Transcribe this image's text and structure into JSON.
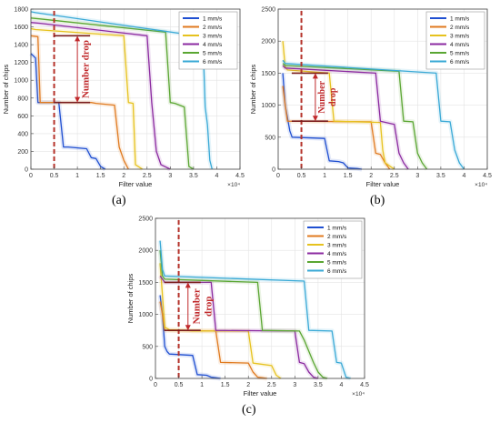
{
  "chart_data": [
    {
      "type": "line",
      "panel_label": "(a)",
      "xlabel": "Filter value",
      "ylabel": "Number of chips",
      "x_multiplier": "×10⁴",
      "xlim": [
        0,
        45000
      ],
      "ylim": [
        0,
        1800
      ],
      "xticks": [
        0,
        5000,
        10000,
        15000,
        20000,
        25000,
        30000,
        35000,
        40000,
        45000
      ],
      "xtick_labels": [
        "0",
        "0.5",
        "1",
        "1.5",
        "2",
        "2.5",
        "3",
        "3.5",
        "4",
        "4.5"
      ],
      "yticks": [
        0,
        200,
        400,
        600,
        800,
        1000,
        1200,
        1400,
        1600,
        1800
      ],
      "ytick_labels": [
        "0",
        "200",
        "400",
        "600",
        "800",
        "1000",
        "1200",
        "1400",
        "1600",
        "1800"
      ],
      "grid": true,
      "legend": "top-right",
      "threshold_x": 5000,
      "annotation": {
        "text": "Number drop",
        "x": 10000,
        "y_top": 1500,
        "y_bottom": 750
      },
      "series": [
        {
          "name": "1 mm/s",
          "color": "#1f4fd1",
          "x": [
            0,
            1000,
            1500,
            2500,
            6000,
            7000,
            8000,
            12000,
            13000,
            14000,
            15000,
            16000
          ],
          "y": [
            1300,
            1250,
            750,
            750,
            750,
            250,
            250,
            230,
            130,
            120,
            30,
            0
          ]
        },
        {
          "name": "2 mm/s",
          "color": "#e07a1f",
          "x": [
            0,
            1500,
            2000,
            13000,
            14000,
            18000,
            19000,
            20000,
            21000
          ],
          "y": [
            1500,
            1490,
            750,
            750,
            740,
            720,
            250,
            100,
            0
          ]
        },
        {
          "name": "3 mm/s",
          "color": "#e6c21e",
          "x": [
            0,
            1000,
            20000,
            21000,
            22000,
            22500,
            24000
          ],
          "y": [
            1580,
            1570,
            1500,
            750,
            740,
            50,
            0
          ]
        },
        {
          "name": "4 mm/s",
          "color": "#8b2aa0",
          "x": [
            0,
            2000,
            25000,
            26000,
            27000,
            28000,
            30000
          ],
          "y": [
            1650,
            1640,
            1500,
            750,
            200,
            50,
            0
          ]
        },
        {
          "name": "5 mm/s",
          "color": "#5aa632",
          "x": [
            0,
            2000,
            29000,
            30000,
            31000,
            33000,
            34000,
            35000
          ],
          "y": [
            1700,
            1690,
            1540,
            750,
            740,
            700,
            30,
            0
          ]
        },
        {
          "name": "6 mm/s",
          "color": "#39a9d6",
          "x": [
            0,
            1000,
            37000,
            37500,
            38000,
            38500,
            39000
          ],
          "y": [
            1770,
            1760,
            1490,
            700,
            500,
            100,
            0
          ]
        }
      ]
    },
    {
      "type": "line",
      "panel_label": "(b)",
      "xlabel": "Filter value",
      "ylabel": "Number of chips",
      "x_multiplier": "×10⁴",
      "xlim": [
        0,
        45000
      ],
      "ylim": [
        0,
        2500
      ],
      "xticks": [
        0,
        5000,
        10000,
        15000,
        20000,
        25000,
        30000,
        35000,
        40000,
        45000
      ],
      "xtick_labels": [
        "0",
        "0.5",
        "1",
        "1.5",
        "2",
        "2.5",
        "3",
        "3.5",
        "4",
        "4.5"
      ],
      "yticks": [
        0,
        500,
        1000,
        1500,
        2000,
        2500
      ],
      "ytick_labels": [
        "0",
        "500",
        "1000",
        "1500",
        "2000",
        "2500"
      ],
      "grid": true,
      "legend": "top-right",
      "threshold_x": 5000,
      "annotation": {
        "text": "Number drop",
        "x": 8000,
        "y_top": 1500,
        "y_bottom": 750
      },
      "series": [
        {
          "name": "1 mm/s",
          "color": "#1f4fd1",
          "x": [
            1000,
            1500,
            2500,
            3000,
            10000,
            11000,
            13000,
            14000,
            15000,
            17000,
            18000
          ],
          "y": [
            1500,
            1000,
            600,
            500,
            480,
            130,
            120,
            100,
            20,
            10,
            0
          ]
        },
        {
          "name": "2 mm/s",
          "color": "#e07a1f",
          "x": [
            1000,
            1500,
            2000,
            20000,
            21000,
            22000,
            23000,
            24000
          ],
          "y": [
            1300,
            1000,
            750,
            740,
            250,
            230,
            100,
            0
          ]
        },
        {
          "name": "3 mm/s",
          "color": "#e6c21e",
          "x": [
            1000,
            1500,
            2000,
            11000,
            12000,
            22000,
            22500,
            23000,
            25000
          ],
          "y": [
            2000,
            1600,
            1550,
            1500,
            750,
            730,
            300,
            100,
            0
          ]
        },
        {
          "name": "4 mm/s",
          "color": "#8b2aa0",
          "x": [
            1000,
            1500,
            21000,
            22000,
            25000,
            26000,
            27000,
            28000
          ],
          "y": [
            1620,
            1580,
            1500,
            750,
            700,
            250,
            100,
            0
          ]
        },
        {
          "name": "5 mm/s",
          "color": "#5aa632",
          "x": [
            1000,
            1500,
            26000,
            27000,
            29000,
            30000,
            31000,
            32000
          ],
          "y": [
            1650,
            1620,
            1530,
            750,
            740,
            250,
            100,
            0
          ]
        },
        {
          "name": "6 mm/s",
          "color": "#39a9d6",
          "x": [
            1000,
            1500,
            34000,
            35000,
            37000,
            38000,
            39000,
            40000
          ],
          "y": [
            1700,
            1650,
            1500,
            750,
            740,
            300,
            100,
            0
          ]
        }
      ]
    },
    {
      "type": "line",
      "panel_label": "(c)",
      "xlabel": "Filter value",
      "ylabel": "Number of chips",
      "x_multiplier": "×10⁴",
      "xlim": [
        0,
        45000
      ],
      "ylim": [
        0,
        2500
      ],
      "xticks": [
        0,
        5000,
        10000,
        15000,
        20000,
        25000,
        30000,
        35000,
        40000,
        45000
      ],
      "xtick_labels": [
        "0",
        "0.5",
        "1",
        "1.5",
        "2",
        "2.5",
        "3",
        "3.5",
        "4",
        "4.5"
      ],
      "yticks": [
        0,
        500,
        1000,
        1500,
        2000,
        2500
      ],
      "ytick_labels": [
        "0",
        "500",
        "1000",
        "1500",
        "2000",
        "2500"
      ],
      "grid": true,
      "legend": "top-right",
      "threshold_x": 5000,
      "annotation": {
        "text": "Number drop",
        "x": 7000,
        "y_top": 1500,
        "y_bottom": 750
      },
      "series": [
        {
          "name": "1 mm/s",
          "color": "#1f4fd1",
          "x": [
            1000,
            1500,
            2000,
            2500,
            3000,
            8000,
            9000,
            11000,
            12000,
            13000,
            14000
          ],
          "y": [
            1300,
            1000,
            500,
            420,
            380,
            360,
            60,
            50,
            20,
            10,
            0
          ]
        },
        {
          "name": "2 mm/s",
          "color": "#e07a1f",
          "x": [
            1000,
            1500,
            2000,
            13000,
            14000,
            20000,
            21000,
            22000,
            23000,
            24000
          ],
          "y": [
            1200,
            1000,
            750,
            740,
            250,
            240,
            100,
            20,
            10,
            0
          ]
        },
        {
          "name": "3 mm/s",
          "color": "#e6c21e",
          "x": [
            1000,
            1500,
            2000,
            2500,
            3000,
            7000,
            8000,
            20000,
            21000,
            22000,
            25000,
            26000,
            27000
          ],
          "y": [
            1800,
            1300,
            800,
            780,
            760,
            750,
            740,
            740,
            240,
            230,
            200,
            50,
            0
          ]
        },
        {
          "name": "4 mm/s",
          "color": "#8b2aa0",
          "x": [
            1000,
            1500,
            2000,
            12000,
            13000,
            30000,
            31000,
            32000,
            33000,
            34000,
            35000
          ],
          "y": [
            1600,
            1550,
            1500,
            1500,
            750,
            740,
            250,
            230,
            100,
            20,
            0
          ]
        },
        {
          "name": "5 mm/s",
          "color": "#5aa632",
          "x": [
            1000,
            1500,
            2000,
            22000,
            23000,
            31000,
            32000,
            34000,
            35000,
            36000,
            37000
          ],
          "y": [
            2000,
            1600,
            1550,
            1500,
            750,
            740,
            600,
            250,
            100,
            20,
            0
          ]
        },
        {
          "name": "6 mm/s",
          "color": "#39a9d6",
          "x": [
            1000,
            1500,
            2000,
            32000,
            33000,
            38000,
            39000,
            40000,
            41000,
            42000
          ],
          "y": [
            2150,
            1700,
            1600,
            1520,
            750,
            740,
            250,
            240,
            20,
            0
          ]
        }
      ]
    }
  ]
}
